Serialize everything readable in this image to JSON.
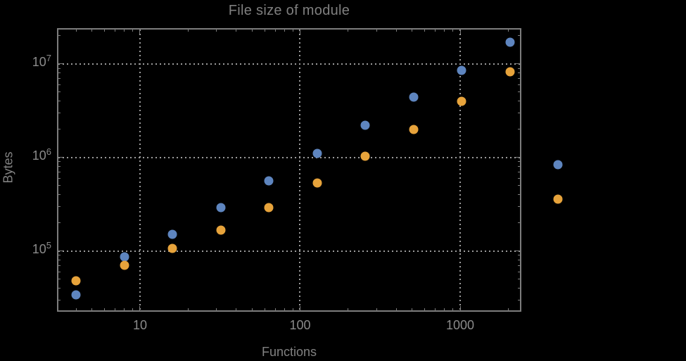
{
  "colors": {
    "background": "#000000",
    "frame": "#7d7d7d",
    "gridline": "#9c9c9c",
    "tick_label_text": "#8b8b8b",
    "title_text": "#7f7f7f",
    "series1_blue": "#5e85bf",
    "series2_orange": "#e7a33b"
  },
  "chart_data": {
    "type": "scatter",
    "title": "File size of module",
    "xlabel": "Functions",
    "ylabel": "Bytes",
    "log_x": true,
    "log_y": true,
    "grid": "dotted",
    "legend": "none",
    "xlim": [
      3.03,
      2412
    ],
    "ylim": [
      22400,
      24200000
    ],
    "x": [
      4,
      8,
      16,
      32,
      64,
      128,
      256,
      512,
      1024,
      2048,
      4096
    ],
    "series": [
      {
        "name": "series-1-blue",
        "color": "#5e85bf",
        "values": [
          34000,
          86000,
          150000,
          290000,
          560000,
          1100000,
          2200000,
          4400000,
          8500000,
          17000000,
          840000
        ]
      },
      {
        "name": "series-2-orange",
        "color": "#e7a33b",
        "values": [
          48000,
          70000,
          106000,
          168000,
          290000,
          530000,
          1030000,
          2000000,
          4000000,
          8200000,
          360000
        ]
      }
    ],
    "x_ticks": [
      {
        "value": 10,
        "label": "10"
      },
      {
        "value": 100,
        "label": "100"
      },
      {
        "value": 1000,
        "label": "1000"
      }
    ],
    "y_ticks": [
      {
        "value": 100000,
        "base": "10",
        "exp": "5"
      },
      {
        "value": 1000000,
        "base": "10",
        "exp": "6"
      },
      {
        "value": 10000000,
        "base": "10",
        "exp": "7"
      }
    ],
    "note": "points at x=4096 are drawn outside the right edge of the plot frame"
  }
}
